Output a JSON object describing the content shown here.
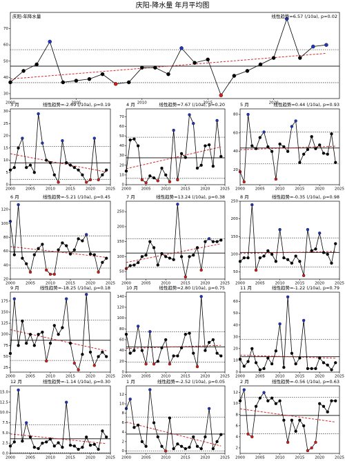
{
  "title": "庆阳-降水量 年月平均图",
  "colors": {
    "point": "#000000",
    "high": "#1f35b5",
    "low": "#c81e1e",
    "trend": "#d62728",
    "mean": "#222222",
    "band": "#444444"
  },
  "chart_data": [
    {
      "type": "line",
      "title": "庆阳-年降水量",
      "annotation": "线性趋势=6.57 (/10a), p=0.02",
      "x": [
        2000,
        2001,
        2002,
        2003,
        2004,
        2005,
        2006,
        2007,
        2008,
        2009,
        2010,
        2011,
        2012,
        2013,
        2014,
        2015,
        2016,
        2017,
        2018,
        2019,
        2020,
        2021,
        2022,
        2023,
        2024
      ],
      "values": [
        37,
        44,
        48,
        62,
        37,
        38,
        39,
        42,
        36,
        37,
        46,
        46,
        42,
        58,
        49,
        51,
        29,
        41,
        44,
        48,
        52,
        76,
        52,
        59,
        60
      ],
      "xlim": [
        2000,
        2025
      ],
      "xticks": [
        2000,
        2005,
        2010,
        2015,
        2020
      ],
      "ylim": [
        27,
        80
      ],
      "yticks": [
        30,
        40,
        50,
        60,
        70
      ]
    },
    {
      "type": "line",
      "title": "3 月",
      "annotation": "线性趋势=-2.69 (/10a), p=0.19",
      "x": [
        2000,
        2001,
        2002,
        2003,
        2004,
        2005,
        2006,
        2007,
        2008,
        2009,
        2010,
        2011,
        2012,
        2013,
        2014,
        2015,
        2016,
        2017,
        2018,
        2019,
        2020,
        2021,
        2022,
        2023,
        2024
      ],
      "values": [
        6,
        7,
        15,
        19,
        7,
        8,
        5,
        29,
        17,
        10,
        9,
        4,
        1,
        18,
        9,
        8,
        7,
        6,
        4,
        1,
        2,
        19,
        2,
        4,
        6
      ],
      "xlim": [
        2000,
        2025
      ],
      "xticks": [
        2000,
        2005,
        2010,
        2015,
        2020,
        2025
      ],
      "ylim": [
        0,
        31
      ],
      "yticks": [
        0,
        5,
        10,
        15,
        20,
        25,
        30
      ]
    },
    {
      "type": "line",
      "title": "4 月",
      "annotation": "线性趋势=7.67 (/10a), p=0.20",
      "x": [
        2000,
        2001,
        2002,
        2003,
        2004,
        2005,
        2006,
        2007,
        2008,
        2009,
        2010,
        2011,
        2012,
        2013,
        2014,
        2015,
        2016,
        2017,
        2018,
        2019,
        2020,
        2021,
        2022,
        2023,
        2024
      ],
      "values": [
        14,
        46,
        47,
        40,
        5,
        2,
        9,
        7,
        4,
        17,
        10,
        3,
        56,
        5,
        32,
        28,
        72,
        63,
        17,
        20,
        40,
        41,
        19,
        66,
        29
      ],
      "xlim": [
        2000,
        2025
      ],
      "xticks": [
        2000,
        2005,
        2010,
        2015,
        2020,
        2025
      ],
      "ylim": [
        0,
        78
      ],
      "yticks": [
        0,
        10,
        20,
        30,
        40,
        50,
        60,
        70
      ]
    },
    {
      "type": "line",
      "title": "5 月",
      "annotation": "线性趋势=0.44 (/10a), p=0.93",
      "x": [
        2000,
        2001,
        2002,
        2003,
        2004,
        2005,
        2006,
        2007,
        2008,
        2009,
        2010,
        2011,
        2012,
        2013,
        2014,
        2015,
        2016,
        2017,
        2018,
        2019,
        2020,
        2021,
        2022,
        2023,
        2024
      ],
      "values": [
        18,
        7,
        80,
        46,
        43,
        55,
        61,
        45,
        40,
        10,
        48,
        45,
        40,
        67,
        73,
        28,
        37,
        42,
        56,
        43,
        47,
        38,
        37,
        59,
        28
      ],
      "xlim": [
        2000,
        2025
      ],
      "xticks": [
        2000,
        2005,
        2010,
        2015,
        2020,
        2025
      ],
      "ylim": [
        4,
        86
      ],
      "yticks": [
        20,
        40,
        60,
        80
      ]
    },
    {
      "type": "line",
      "title": "6 月",
      "annotation": "线性趋势=-5.21 (/10a), p=0.45",
      "x": [
        2000,
        2001,
        2002,
        2003,
        2004,
        2005,
        2006,
        2007,
        2008,
        2009,
        2010,
        2011,
        2012,
        2013,
        2014,
        2015,
        2016,
        2017,
        2018,
        2019,
        2020,
        2021,
        2022,
        2023,
        2024
      ],
      "values": [
        103,
        55,
        127,
        50,
        42,
        30,
        55,
        64,
        70,
        33,
        27,
        27,
        62,
        72,
        68,
        56,
        62,
        78,
        75,
        84,
        56,
        55,
        30,
        44,
        50
      ],
      "xlim": [
        2000,
        2025
      ],
      "xticks": [
        2000,
        2005,
        2010,
        2015,
        2020,
        2025
      ],
      "ylim": [
        20,
        132
      ],
      "yticks": [
        20,
        40,
        60,
        80,
        100,
        120
      ]
    },
    {
      "type": "line",
      "title": "7 月",
      "annotation": "线性趋势=13.24 (/10a), p=0.38",
      "x": [
        2000,
        2001,
        2002,
        2003,
        2004,
        2005,
        2006,
        2007,
        2008,
        2009,
        2010,
        2011,
        2012,
        2013,
        2014,
        2015,
        2016,
        2017,
        2018,
        2019,
        2020,
        2021,
        2022,
        2023,
        2024
      ],
      "values": [
        60,
        70,
        72,
        80,
        100,
        105,
        150,
        130,
        72,
        110,
        100,
        95,
        90,
        275,
        100,
        32,
        100,
        105,
        130,
        55,
        150,
        160,
        150,
        150,
        155
      ],
      "xlim": [
        2000,
        2025
      ],
      "xticks": [
        2000,
        2005,
        2010,
        2015,
        2020,
        2025
      ],
      "ylim": [
        25,
        285
      ],
      "yticks": [
        50,
        100,
        150,
        200,
        250
      ]
    },
    {
      "type": "line",
      "title": "8 月",
      "annotation": "线性趋势=-0.35 (/10a), p=0.98",
      "x": [
        2000,
        2001,
        2002,
        2003,
        2004,
        2005,
        2006,
        2007,
        2008,
        2009,
        2010,
        2011,
        2012,
        2013,
        2014,
        2015,
        2016,
        2017,
        2018,
        2019,
        2020,
        2021,
        2022,
        2023,
        2024
      ],
      "values": [
        80,
        90,
        90,
        240,
        55,
        90,
        95,
        110,
        100,
        80,
        170,
        90,
        85,
        75,
        95,
        80,
        40,
        170,
        110,
        115,
        160,
        105,
        100,
        75,
        130
      ],
      "xlim": [
        2000,
        2025
      ],
      "xticks": [
        2000,
        2005,
        2010,
        2015,
        2020,
        2025
      ],
      "ylim": [
        30,
        250
      ],
      "yticks": [
        50,
        100,
        150,
        200,
        250
      ]
    },
    {
      "type": "line",
      "title": "9 月",
      "annotation": "线性趋势=-18.25 (/10a), p=0.18",
      "x": [
        2000,
        2001,
        2002,
        2003,
        2004,
        2005,
        2006,
        2007,
        2008,
        2009,
        2010,
        2011,
        2012,
        2013,
        2014,
        2015,
        2016,
        2017,
        2018,
        2019,
        2020,
        2021,
        2022,
        2023,
        2024
      ],
      "values": [
        57,
        180,
        75,
        130,
        80,
        100,
        75,
        100,
        105,
        40,
        80,
        120,
        100,
        115,
        180,
        80,
        35,
        20,
        55,
        190,
        60,
        30,
        50,
        60,
        50
      ],
      "xlim": [
        2000,
        2025
      ],
      "xticks": [
        2000,
        2005,
        2010,
        2015,
        2020,
        2025
      ],
      "ylim": [
        15,
        195
      ],
      "yticks": [
        25,
        50,
        75,
        100,
        125,
        150,
        175
      ]
    },
    {
      "type": "line",
      "title": "10 月",
      "annotation": "线性趋势=2.80 (/10a), p=0.75",
      "x": [
        2000,
        2001,
        2002,
        2003,
        2004,
        2005,
        2006,
        2007,
        2008,
        2009,
        2010,
        2011,
        2012,
        2013,
        2014,
        2015,
        2016,
        2017,
        2018,
        2019,
        2020,
        2021,
        2022,
        2023,
        2024
      ],
      "values": [
        70,
        35,
        40,
        85,
        40,
        15,
        75,
        15,
        20,
        45,
        60,
        15,
        30,
        30,
        45,
        70,
        72,
        35,
        10,
        140,
        40,
        55,
        60,
        35,
        30
      ],
      "xlim": [
        2000,
        2025
      ],
      "xticks": [
        2000,
        2005,
        2010,
        2015,
        2020,
        2025
      ],
      "ylim": [
        0,
        148
      ],
      "yticks": [
        0,
        20,
        40,
        60,
        80,
        100,
        120,
        140
      ]
    },
    {
      "type": "line",
      "title": "11 月",
      "annotation": "线性趋势=-1.22 (/10a), p=0.79",
      "x": [
        2000,
        2001,
        2002,
        2003,
        2004,
        2005,
        2006,
        2007,
        2008,
        2009,
        2010,
        2011,
        2012,
        2013,
        2014,
        2015,
        2016,
        2017,
        2018,
        2019,
        2020,
        2021,
        2022,
        2023,
        2024
      ],
      "values": [
        11,
        5,
        9,
        20,
        8,
        2,
        3,
        12,
        7,
        18,
        41,
        4,
        64,
        16,
        7,
        12,
        44,
        3,
        3,
        3,
        12,
        8,
        6,
        2,
        8
      ],
      "xlim": [
        2000,
        2025
      ],
      "xticks": [
        2000,
        2005,
        2010,
        2015,
        2020,
        2025
      ],
      "ylim": [
        0,
        68
      ],
      "yticks": [
        0,
        10,
        20,
        30,
        40,
        50,
        60
      ]
    },
    {
      "type": "line",
      "title": "12 月",
      "annotation": "线性趋势=-1.14 (/10a), p=0.30",
      "x": [
        2000,
        2001,
        2002,
        2003,
        2004,
        2005,
        2006,
        2007,
        2008,
        2009,
        2010,
        2011,
        2012,
        2013,
        2014,
        2015,
        2016,
        2017,
        2018,
        2019,
        2020,
        2021,
        2022,
        2023,
        2024
      ],
      "values": [
        1.8,
        2.8,
        15.5,
        3,
        7.5,
        4,
        1.5,
        1.2,
        2.5,
        2.8,
        3.5,
        1.8,
        2.6,
        1.5,
        12.5,
        2,
        1.8,
        1,
        1.5,
        4,
        2,
        2.2,
        1,
        5.5,
        4
      ],
      "xlim": [
        2000,
        2025
      ],
      "xticks": [
        2000,
        2005,
        2010,
        2015,
        2020,
        2025
      ],
      "ylim": [
        0,
        16.5
      ],
      "yticks": [
        {
          "value": 0,
          "label": "0.0"
        },
        {
          "value": 2.5,
          "label": "2.5"
        },
        {
          "value": 5,
          "label": "5.0"
        },
        {
          "value": 7.5,
          "label": "7.5"
        },
        {
          "value": 10,
          "label": "10.0"
        },
        {
          "value": 12.5,
          "label": "12.5"
        },
        {
          "value": 15,
          "label": "15.0"
        }
      ]
    },
    {
      "type": "line",
      "title": "1 月",
      "annotation": "线性趋势=-2.52 (/10a), p=0.05",
      "x": [
        2000,
        2001,
        2002,
        2003,
        2004,
        2005,
        2006,
        2007,
        2008,
        2009,
        2010,
        2011,
        2012,
        2013,
        2014,
        2015,
        2016,
        2017,
        2018,
        2019,
        2020,
        2021,
        2022,
        2023,
        2024
      ],
      "values": [
        9,
        11,
        5,
        5.5,
        2,
        1,
        13,
        6,
        3,
        1,
        0,
        7,
        0.5,
        1.5,
        1,
        0.5,
        0.8,
        3,
        1,
        0.5,
        3,
        9,
        0.5,
        2,
        3.5
      ],
      "xlim": [
        2000,
        2025
      ],
      "xticks": [
        2000,
        2005,
        2010,
        2015,
        2020,
        2025
      ],
      "ylim": [
        -0.5,
        13.8
      ],
      "yticks": [
        0,
        2,
        4,
        6,
        8,
        10,
        12
      ]
    },
    {
      "type": "line",
      "title": "2 月",
      "annotation": "线性趋势=-0.56 (/10a), p=0.63",
      "x": [
        2000,
        2001,
        2002,
        2003,
        2004,
        2005,
        2006,
        2007,
        2008,
        2009,
        2010,
        2011,
        2012,
        2013,
        2014,
        2015,
        2016,
        2017,
        2018,
        2019,
        2020,
        2021,
        2022,
        2023,
        2024
      ],
      "values": [
        10.5,
        12.5,
        4.5,
        4,
        9.5,
        11,
        12,
        10.5,
        11,
        10,
        10.5,
        7,
        3,
        7,
        5,
        7,
        6,
        1.5,
        2,
        3,
        10,
        9.5,
        8.5,
        10.5,
        10.5
      ],
      "xlim": [
        2000,
        2025
      ],
      "xticks": [
        2000,
        2005,
        2010,
        2015,
        2020,
        2025
      ],
      "ylim": [
        1,
        13.2
      ],
      "yticks": [
        2,
        4,
        6,
        8,
        10,
        12
      ]
    }
  ]
}
